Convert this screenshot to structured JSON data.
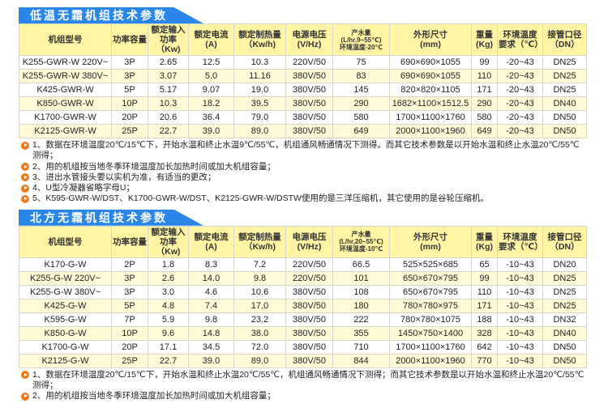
{
  "tables": [
    {
      "title": "低温无霜机组技术参数",
      "headers": [
        "机组型号",
        "功率容量",
        "额定输入\n功率（Kw)",
        "额定电流\n(A)",
        "额定制热量\n（Kw/h)",
        "电源电压\n(V/Hz)",
        "产水量\n(L/hr,9~55℃)\n环境温度-20℃",
        "外形尺寸\n(mm)",
        "重量\n(Kg)",
        "环境温度\n要求（℃）",
        "接管口径\n（DN）"
      ],
      "rows": [
        [
          "K255-GWR-W 220V~",
          "3P",
          "2.65",
          "12.5",
          "10.3",
          "220V/50",
          "75",
          "690×690×1055",
          "99",
          "-20~43",
          "DN25"
        ],
        [
          "K255-GWR-W 380V~",
          "3P",
          "3.07",
          "5.0",
          "11.16",
          "380V/50",
          "83",
          "690×690×1055",
          "110",
          "-20~43",
          "DN25"
        ],
        [
          "K425-GWR-W",
          "5P",
          "5.17",
          "9.07",
          "19.0",
          "380V/50",
          "145",
          "820×820×1105",
          "171",
          "-20~43",
          "DN25"
        ],
        [
          "K850-GWR-W",
          "10P",
          "10.3",
          "18.2",
          "39.5",
          "380V/50",
          "290",
          "1682×1100×1512.5",
          "290",
          "-20~43",
          "DN40"
        ],
        [
          "K1700-GWR-W",
          "20P",
          "20.6",
          "36.4",
          "79.0",
          "380V/50",
          "580",
          "1700×1100×1760",
          "580",
          "-20~43",
          "DN50"
        ],
        [
          "K2125-GWR-W",
          "25P",
          "22.7",
          "39.0",
          "89.0",
          "380V/50",
          "649",
          "2000×1100×1960",
          "649",
          "-20~43",
          "DN50"
        ]
      ],
      "notes": [
        "1、数据在环境温度20℃/15℃下，开始水温和终止水温9℃/55℃，机组通风畅通情况下测得。而其它技术参数是以开始水温和终止水温20℃/55℃测得；",
        "2、用的机组按当地冬季环境温度加长加热时间或加大机组容量；",
        "3、进出水管接头要以实机为准，有适当的更改；",
        "4、U型冷凝器省略字母U；",
        "5、K595-GWR-W/DST、K1700-GWR-W/DST、K2125-GWR-W/DSTW使用的是三洋压缩机，其它使用的是谷轮压缩机。"
      ]
    },
    {
      "title": "北方无霜机组技术参数",
      "headers": [
        "机组型号",
        "功率容量",
        "额定输入\n功率（Kw)",
        "额定电流\n(A)",
        "额定制热量\n（Kw/h)",
        "电源电压\n(V/Hz)",
        "产水量\n(L/hr,20~55℃)\n环境温度-10℃",
        "外形尺寸\n(mm)",
        "重量\n(Kg)",
        "环境温度\n要求（℃）",
        "接管口径\n（DN）"
      ],
      "rows": [
        [
          "K170-G-W",
          "2P",
          "1.8",
          "8.3",
          "7.2",
          "220V/50",
          "66.5",
          "525×525×685",
          "65",
          "-10~43",
          "DN20"
        ],
        [
          "K255-G-W 220V~",
          "3P",
          "2.6",
          "14.0",
          "9.8",
          "220V/50",
          "101",
          "650×670×795",
          "99",
          "-10~43",
          "DN25"
        ],
        [
          "K255-G-W 380V~",
          "3P",
          "3.0",
          "4.6",
          "10.6",
          "380V/50",
          "108",
          "650×670×795",
          "110",
          "-10~43",
          "DN25"
        ],
        [
          "K425-G-W",
          "5P",
          "4.8",
          "7.4",
          "17.0",
          "380V/50",
          "180",
          "780×780×975",
          "171",
          "-10~43",
          "DN25"
        ],
        [
          "K595-G-W",
          "7P",
          "5.9",
          "9.8",
          "23.2",
          "380V/50",
          "222",
          "780×780×1075",
          "188",
          "-10~43",
          "DN32"
        ],
        [
          "K850-G-W",
          "10P",
          "9.6",
          "14.8",
          "38.0",
          "380V/50",
          "355",
          "1450×750×1400",
          "328",
          "-10~43",
          "DN40"
        ],
        [
          "K1700-G-W",
          "20P",
          "17.1",
          "34.5",
          "72.0",
          "380V/50",
          "710",
          "1700×1100×1760",
          "642",
          "-10~43",
          "DN50"
        ],
        [
          "K2125-G-W",
          "25P",
          "22.7",
          "39.0",
          "89.0",
          "380V/50",
          "844",
          "2000×1100×1960",
          "770",
          "-10~43",
          "DN50"
        ]
      ],
      "notes": [
        "1、数据在环境温度20℃/15℃下，开始水温和终止水温20℃/55℃，机组通风畅通情况下测得；而其它技术参数是以开始水温和终止水温20℃/55℃测得；",
        "2、用的机组按当地冬季环境温度加长加热时间或加大机组容量；"
      ]
    }
  ],
  "colors": {
    "title_bg": "#2a86e8",
    "header_bg": "#fff5a5",
    "alt_row": "#fffbd6",
    "bullet": "#f07a18"
  }
}
